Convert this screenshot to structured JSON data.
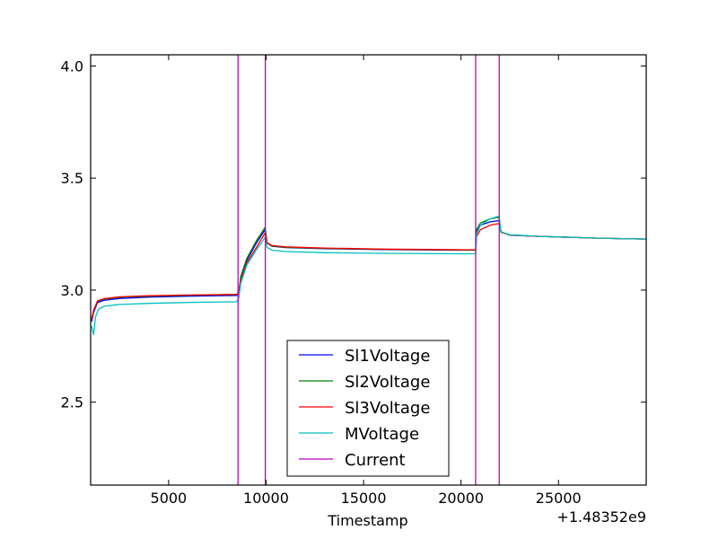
{
  "chart_data": {
    "type": "line",
    "title": "",
    "xlabel": "Timestamp",
    "ylabel": "",
    "x_offset_label": "+1.48352e9",
    "xlim": [
      1000,
      29500
    ],
    "ylim": [
      2.13,
      4.05
    ],
    "xticks": [
      5000,
      10000,
      15000,
      20000,
      25000
    ],
    "yticks": [
      2.5,
      3.0,
      3.5,
      4.0
    ],
    "xtick_labels": [
      "5000",
      "10000",
      "15000",
      "20000",
      "25000"
    ],
    "ytick_labels": [
      "2.5",
      "3.0",
      "3.5",
      "4.0"
    ],
    "grid": false,
    "legend_position": "bottom-center",
    "series": [
      {
        "name": "Sl1Voltage",
        "color": "#0000ff",
        "points": [
          [
            1050,
            2.86
          ],
          [
            1150,
            2.9
          ],
          [
            1350,
            2.945
          ],
          [
            1700,
            2.955
          ],
          [
            2500,
            2.963
          ],
          [
            4000,
            2.969
          ],
          [
            6000,
            2.973
          ],
          [
            8500,
            2.976
          ],
          [
            8600,
            2.99
          ],
          [
            8700,
            3.05
          ],
          [
            9000,
            3.13
          ],
          [
            9500,
            3.21
          ],
          [
            9950,
            3.27
          ],
          [
            10050,
            3.21
          ],
          [
            10300,
            3.196
          ],
          [
            11000,
            3.19
          ],
          [
            13000,
            3.185
          ],
          [
            16000,
            3.181
          ],
          [
            20000,
            3.178
          ],
          [
            20750,
            3.178
          ],
          [
            20800,
            3.26
          ],
          [
            21000,
            3.29
          ],
          [
            21500,
            3.305
          ],
          [
            21950,
            3.31
          ],
          [
            22050,
            3.26
          ],
          [
            22500,
            3.245
          ],
          [
            24000,
            3.24
          ],
          [
            27000,
            3.232
          ],
          [
            29500,
            3.228
          ]
        ]
      },
      {
        "name": "Sl2Voltage",
        "color": "#008000",
        "points": [
          [
            1050,
            2.87
          ],
          [
            1150,
            2.91
          ],
          [
            1350,
            2.95
          ],
          [
            1700,
            2.96
          ],
          [
            2500,
            2.968
          ],
          [
            4000,
            2.973
          ],
          [
            6000,
            2.977
          ],
          [
            8500,
            2.98
          ],
          [
            8600,
            2.995
          ],
          [
            8700,
            3.06
          ],
          [
            9000,
            3.14
          ],
          [
            9500,
            3.22
          ],
          [
            9950,
            3.28
          ],
          [
            10050,
            3.21
          ],
          [
            10300,
            3.197
          ],
          [
            11000,
            3.191
          ],
          [
            13000,
            3.186
          ],
          [
            16000,
            3.182
          ],
          [
            20000,
            3.179
          ],
          [
            20750,
            3.179
          ],
          [
            20800,
            3.27
          ],
          [
            21000,
            3.3
          ],
          [
            21500,
            3.318
          ],
          [
            21950,
            3.325
          ],
          [
            22050,
            3.26
          ],
          [
            22500,
            3.246
          ],
          [
            24000,
            3.24
          ],
          [
            27000,
            3.232
          ],
          [
            29500,
            3.228
          ]
        ]
      },
      {
        "name": "Sl3Voltage",
        "color": "#ff0000",
        "points": [
          [
            1050,
            2.87
          ],
          [
            1150,
            2.91
          ],
          [
            1350,
            2.952
          ],
          [
            1700,
            2.962
          ],
          [
            2500,
            2.97
          ],
          [
            4000,
            2.975
          ],
          [
            6000,
            2.978
          ],
          [
            8500,
            2.981
          ],
          [
            8600,
            2.99
          ],
          [
            8700,
            3.04
          ],
          [
            9000,
            3.12
          ],
          [
            9500,
            3.19
          ],
          [
            9950,
            3.255
          ],
          [
            10050,
            3.212
          ],
          [
            10300,
            3.199
          ],
          [
            11000,
            3.193
          ],
          [
            13000,
            3.188
          ],
          [
            16000,
            3.183
          ],
          [
            20000,
            3.18
          ],
          [
            20750,
            3.18
          ],
          [
            20800,
            3.24
          ],
          [
            21000,
            3.27
          ],
          [
            21500,
            3.29
          ],
          [
            21950,
            3.297
          ],
          [
            22050,
            3.258
          ],
          [
            22500,
            3.246
          ],
          [
            24000,
            3.24
          ],
          [
            27000,
            3.232
          ],
          [
            29500,
            3.228
          ]
        ]
      },
      {
        "name": "MVoltage",
        "color": "#00bfbf",
        "points": [
          [
            1050,
            2.84
          ],
          [
            1150,
            2.8
          ],
          [
            1250,
            2.88
          ],
          [
            1400,
            2.915
          ],
          [
            1700,
            2.928
          ],
          [
            2500,
            2.936
          ],
          [
            4000,
            2.941
          ],
          [
            6000,
            2.945
          ],
          [
            8500,
            2.948
          ],
          [
            8600,
            2.965
          ],
          [
            8700,
            3.03
          ],
          [
            9000,
            3.11
          ],
          [
            9500,
            3.18
          ],
          [
            9950,
            3.235
          ],
          [
            10050,
            3.19
          ],
          [
            10300,
            3.178
          ],
          [
            11000,
            3.172
          ],
          [
            13000,
            3.167
          ],
          [
            16000,
            3.164
          ],
          [
            20000,
            3.162
          ],
          [
            20750,
            3.162
          ],
          [
            20800,
            3.25
          ],
          [
            21000,
            3.29
          ],
          [
            21500,
            3.318
          ],
          [
            21950,
            3.33
          ],
          [
            22050,
            3.26
          ],
          [
            22500,
            3.247
          ],
          [
            24000,
            3.24
          ],
          [
            27000,
            3.232
          ],
          [
            29500,
            3.228
          ]
        ]
      },
      {
        "name": "Current",
        "color": "#bf00bf",
        "vertical_lines_x": [
          8560,
          9960,
          20750,
          21960
        ]
      }
    ]
  }
}
